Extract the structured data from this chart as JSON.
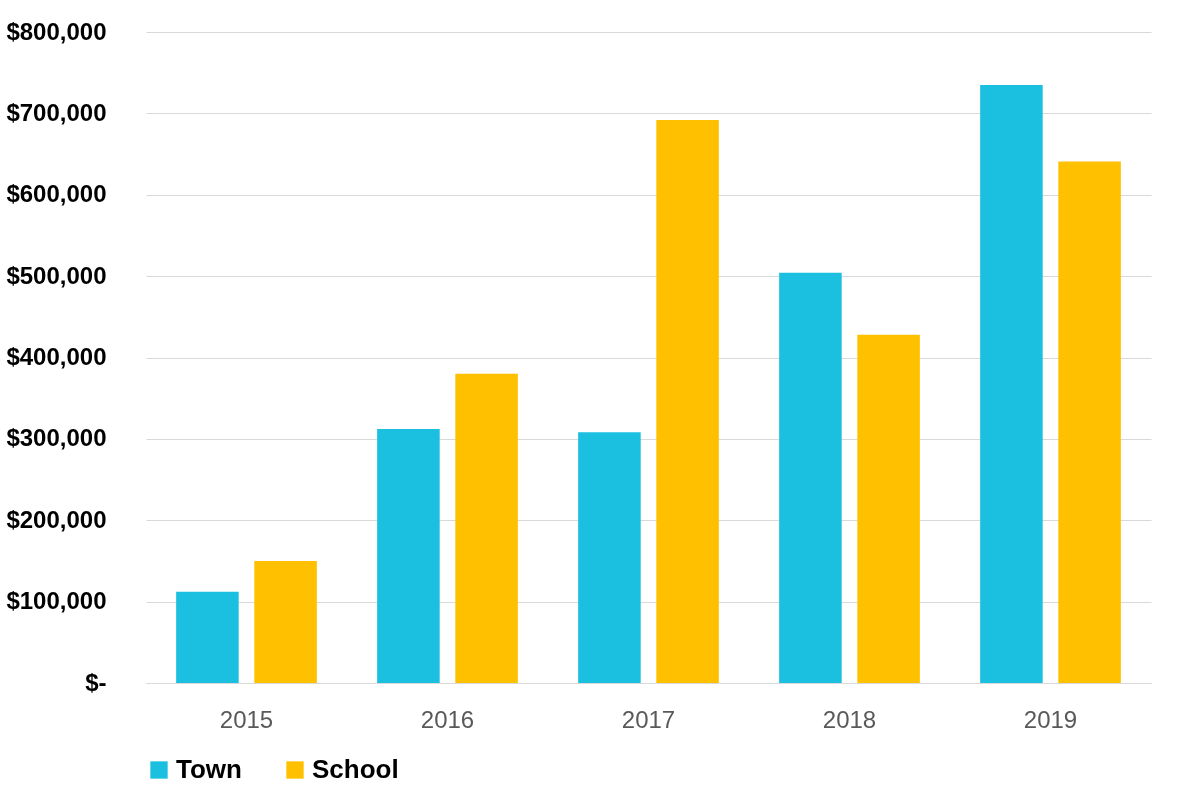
{
  "chart_data": {
    "type": "bar",
    "categories": [
      "2015",
      "2016",
      "2017",
      "2018",
      "2019"
    ],
    "series": [
      {
        "name": "Town",
        "color": "#1bbfdf",
        "values": [
          112000,
          312000,
          308000,
          504000,
          735000
        ]
      },
      {
        "name": "School",
        "color": "#ffc000",
        "values": [
          150000,
          380000,
          692000,
          428000,
          641000
        ]
      }
    ],
    "ylim": [
      0,
      800000
    ],
    "yticks": [
      {
        "value": 0,
        "label": "$-"
      },
      {
        "value": 100000,
        "label": "$100,000"
      },
      {
        "value": 200000,
        "label": "$200,000"
      },
      {
        "value": 300000,
        "label": "$300,000"
      },
      {
        "value": 400000,
        "label": "$400,000"
      },
      {
        "value": 500000,
        "label": "$500,000"
      },
      {
        "value": 600000,
        "label": "$600,000"
      },
      {
        "value": 700000,
        "label": "$700,000"
      },
      {
        "value": 800000,
        "label": "$800,000"
      }
    ],
    "grid": "y",
    "legend": "bottom"
  }
}
